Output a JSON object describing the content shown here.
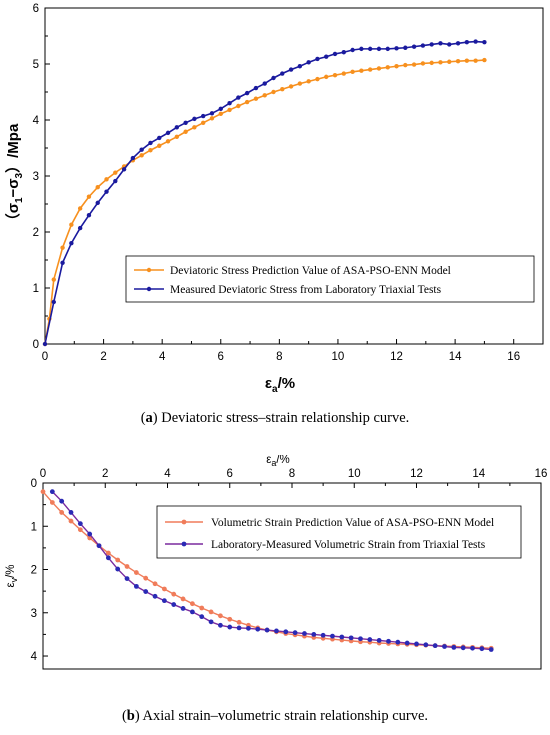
{
  "captions": {
    "a": {
      "label": "a",
      "text": " Deviatoric stress–strain relationship curve."
    },
    "b": {
      "label": "b",
      "text": " Axial strain–volumetric strain relationship curve."
    }
  },
  "chart_data": [
    {
      "type": "line",
      "xlabel": "εa/%",
      "ylabel": "(σ1−σ3) /Mpa",
      "xlim": [
        0,
        17
      ],
      "ylim": [
        0,
        6
      ],
      "xticks": [
        "0",
        "2",
        "4",
        "6",
        "8",
        "10",
        "12",
        "14",
        "16"
      ],
      "yticks": [
        "0",
        "1",
        "2",
        "3",
        "4",
        "5",
        "6"
      ],
      "legend": "center-right",
      "colors": {
        "predicted": "#f7901e",
        "measured": "#1a1a9e"
      },
      "series": [
        {
          "name": "Deviatoric Stress Prediction Value of ASA-PSO-ENN Model",
          "x": [
            0,
            0.15,
            0.3,
            0.6,
            0.9,
            1.2,
            1.5,
            1.8,
            2.1,
            2.4,
            2.7,
            3.0,
            3.3,
            3.6,
            3.9,
            4.2,
            4.5,
            4.8,
            5.1,
            5.4,
            5.7,
            6.0,
            6.3,
            6.6,
            6.9,
            7.2,
            7.5,
            7.8,
            8.1,
            8.4,
            8.7,
            9.0,
            9.3,
            9.6,
            9.9,
            10.2,
            10.5,
            10.8,
            11.1,
            11.4,
            11.7,
            12.0,
            12.3,
            12.6,
            12.9,
            13.2,
            13.5,
            13.8,
            14.1,
            14.4,
            14.7,
            15.0
          ],
          "values": [
            0,
            0.45,
            1.15,
            1.72,
            2.13,
            2.42,
            2.63,
            2.8,
            2.94,
            3.06,
            3.17,
            3.28,
            3.37,
            3.46,
            3.54,
            3.62,
            3.7,
            3.79,
            3.87,
            3.95,
            4.03,
            4.11,
            4.18,
            4.25,
            4.32,
            4.38,
            4.44,
            4.5,
            4.55,
            4.6,
            4.65,
            4.69,
            4.73,
            4.77,
            4.8,
            4.83,
            4.86,
            4.88,
            4.9,
            4.92,
            4.94,
            4.96,
            4.98,
            4.99,
            5.01,
            5.02,
            5.03,
            5.04,
            5.05,
            5.06,
            5.06,
            5.07
          ]
        },
        {
          "name": "Measured Deviatoric Stress from Laboratory Triaxial Tests",
          "x": [
            0,
            0.3,
            0.6,
            0.9,
            1.2,
            1.5,
            1.8,
            2.1,
            2.4,
            2.7,
            3.0,
            3.3,
            3.6,
            3.9,
            4.2,
            4.5,
            4.8,
            5.1,
            5.4,
            5.7,
            6.0,
            6.3,
            6.6,
            6.9,
            7.2,
            7.5,
            7.8,
            8.1,
            8.4,
            8.7,
            9.0,
            9.3,
            9.6,
            9.9,
            10.2,
            10.5,
            10.8,
            11.1,
            11.4,
            11.7,
            12.0,
            12.3,
            12.6,
            12.9,
            13.2,
            13.5,
            13.8,
            14.1,
            14.4,
            14.7,
            15.0
          ],
          "values": [
            0,
            0.75,
            1.45,
            1.8,
            2.07,
            2.3,
            2.52,
            2.72,
            2.91,
            3.12,
            3.32,
            3.47,
            3.59,
            3.68,
            3.77,
            3.87,
            3.95,
            4.02,
            4.07,
            4.12,
            4.2,
            4.3,
            4.4,
            4.48,
            4.57,
            4.65,
            4.75,
            4.83,
            4.9,
            4.96,
            5.03,
            5.09,
            5.13,
            5.18,
            5.21,
            5.25,
            5.27,
            5.27,
            5.27,
            5.27,
            5.28,
            5.29,
            5.31,
            5.33,
            5.35,
            5.37,
            5.35,
            5.37,
            5.39,
            5.4,
            5.39
          ]
        }
      ]
    },
    {
      "type": "line",
      "xlabel": "εa/%",
      "ylabel": "εv/%",
      "xlim": [
        0,
        16
      ],
      "ylim": [
        0,
        4.3
      ],
      "yreversed": true,
      "xaxis_position": "top",
      "xticks": [
        "0",
        "2",
        "4",
        "6",
        "8",
        "10",
        "12",
        "14",
        "16"
      ],
      "yticks": [
        "0",
        "1",
        "2",
        "3",
        "4"
      ],
      "legend": "center-right",
      "colors": {
        "predicted": "#f07c5a",
        "measured": "#2a2ab5",
        "measured_line": "#7a2a9e"
      },
      "series": [
        {
          "name": "Volumetric Strain Prediction Value of ASA-PSO-ENN Model",
          "x": [
            0,
            0.3,
            0.6,
            0.9,
            1.2,
            1.5,
            1.8,
            2.1,
            2.4,
            2.7,
            3.0,
            3.3,
            3.6,
            3.9,
            4.2,
            4.5,
            4.8,
            5.1,
            5.4,
            5.7,
            6.0,
            6.3,
            6.6,
            6.9,
            7.2,
            7.5,
            7.8,
            8.1,
            8.4,
            8.7,
            9.0,
            9.3,
            9.6,
            9.9,
            10.2,
            10.5,
            10.8,
            11.1,
            11.4,
            11.7,
            12.0,
            12.3,
            12.6,
            12.9,
            13.2,
            13.5,
            13.8,
            14.1,
            14.4
          ],
          "values": [
            0.2,
            0.45,
            0.68,
            0.88,
            1.08,
            1.27,
            1.45,
            1.62,
            1.78,
            1.93,
            2.07,
            2.2,
            2.33,
            2.45,
            2.57,
            2.68,
            2.79,
            2.89,
            2.98,
            3.07,
            3.15,
            3.22,
            3.29,
            3.35,
            3.4,
            3.44,
            3.48,
            3.51,
            3.54,
            3.57,
            3.59,
            3.61,
            3.63,
            3.65,
            3.67,
            3.68,
            3.7,
            3.71,
            3.72,
            3.73,
            3.74,
            3.75,
            3.76,
            3.77,
            3.78,
            3.79,
            3.8,
            3.81,
            3.82
          ]
        },
        {
          "name": "Laboratory-Measured Volumetric Strain from Triaxial Tests",
          "x": [
            0.3,
            0.6,
            0.9,
            1.2,
            1.5,
            1.8,
            2.1,
            2.4,
            2.7,
            3.0,
            3.3,
            3.6,
            3.9,
            4.2,
            4.5,
            4.8,
            5.1,
            5.4,
            5.7,
            6.0,
            6.3,
            6.6,
            6.9,
            7.2,
            7.5,
            7.8,
            8.1,
            8.4,
            8.7,
            9.0,
            9.3,
            9.6,
            9.9,
            10.2,
            10.5,
            10.8,
            11.1,
            11.4,
            11.7,
            12.0,
            12.3,
            12.6,
            12.9,
            13.2,
            13.5,
            13.8,
            14.1,
            14.4
          ],
          "values": [
            0.2,
            0.42,
            0.68,
            0.94,
            1.18,
            1.45,
            1.73,
            1.99,
            2.21,
            2.39,
            2.51,
            2.62,
            2.72,
            2.81,
            2.9,
            2.98,
            3.09,
            3.21,
            3.29,
            3.33,
            3.35,
            3.36,
            3.38,
            3.4,
            3.42,
            3.44,
            3.46,
            3.48,
            3.5,
            3.52,
            3.54,
            3.56,
            3.58,
            3.6,
            3.62,
            3.64,
            3.66,
            3.68,
            3.7,
            3.72,
            3.74,
            3.76,
            3.78,
            3.8,
            3.81,
            3.82,
            3.83,
            3.85
          ]
        }
      ]
    }
  ]
}
